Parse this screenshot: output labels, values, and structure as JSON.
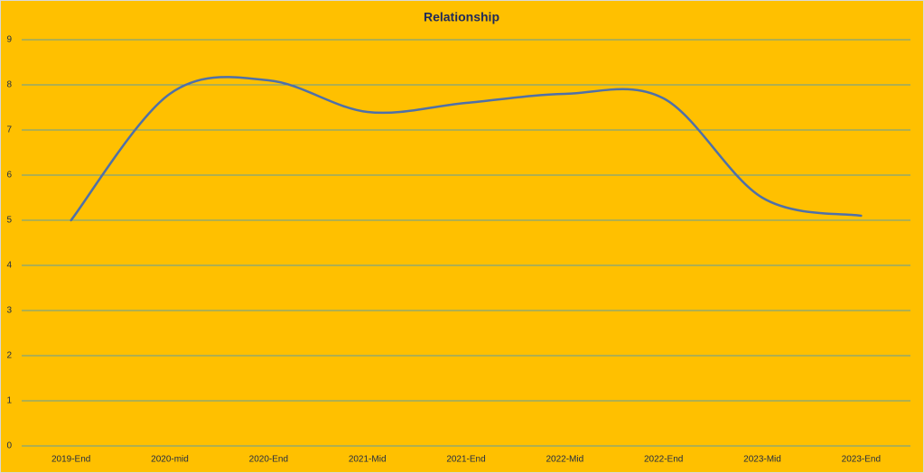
{
  "chart_data": {
    "type": "line",
    "title": "Relationship",
    "categories": [
      "2019-End",
      "2020-mid",
      "2020-End",
      "2021-Mid",
      "2021-End",
      "2022-Mid",
      "2022-End",
      "2023-Mid",
      "2023-End"
    ],
    "series": [
      {
        "name": "Relationship",
        "color": "#4f70a8",
        "values": [
          5,
          7.8,
          8.1,
          7.4,
          7.6,
          7.8,
          7.7,
          5.5,
          5.1
        ]
      }
    ],
    "ylim": [
      0,
      9
    ],
    "yticks": [
      0,
      1,
      2,
      3,
      4,
      5,
      6,
      7,
      8,
      9
    ],
    "grid": true,
    "smooth": true
  }
}
